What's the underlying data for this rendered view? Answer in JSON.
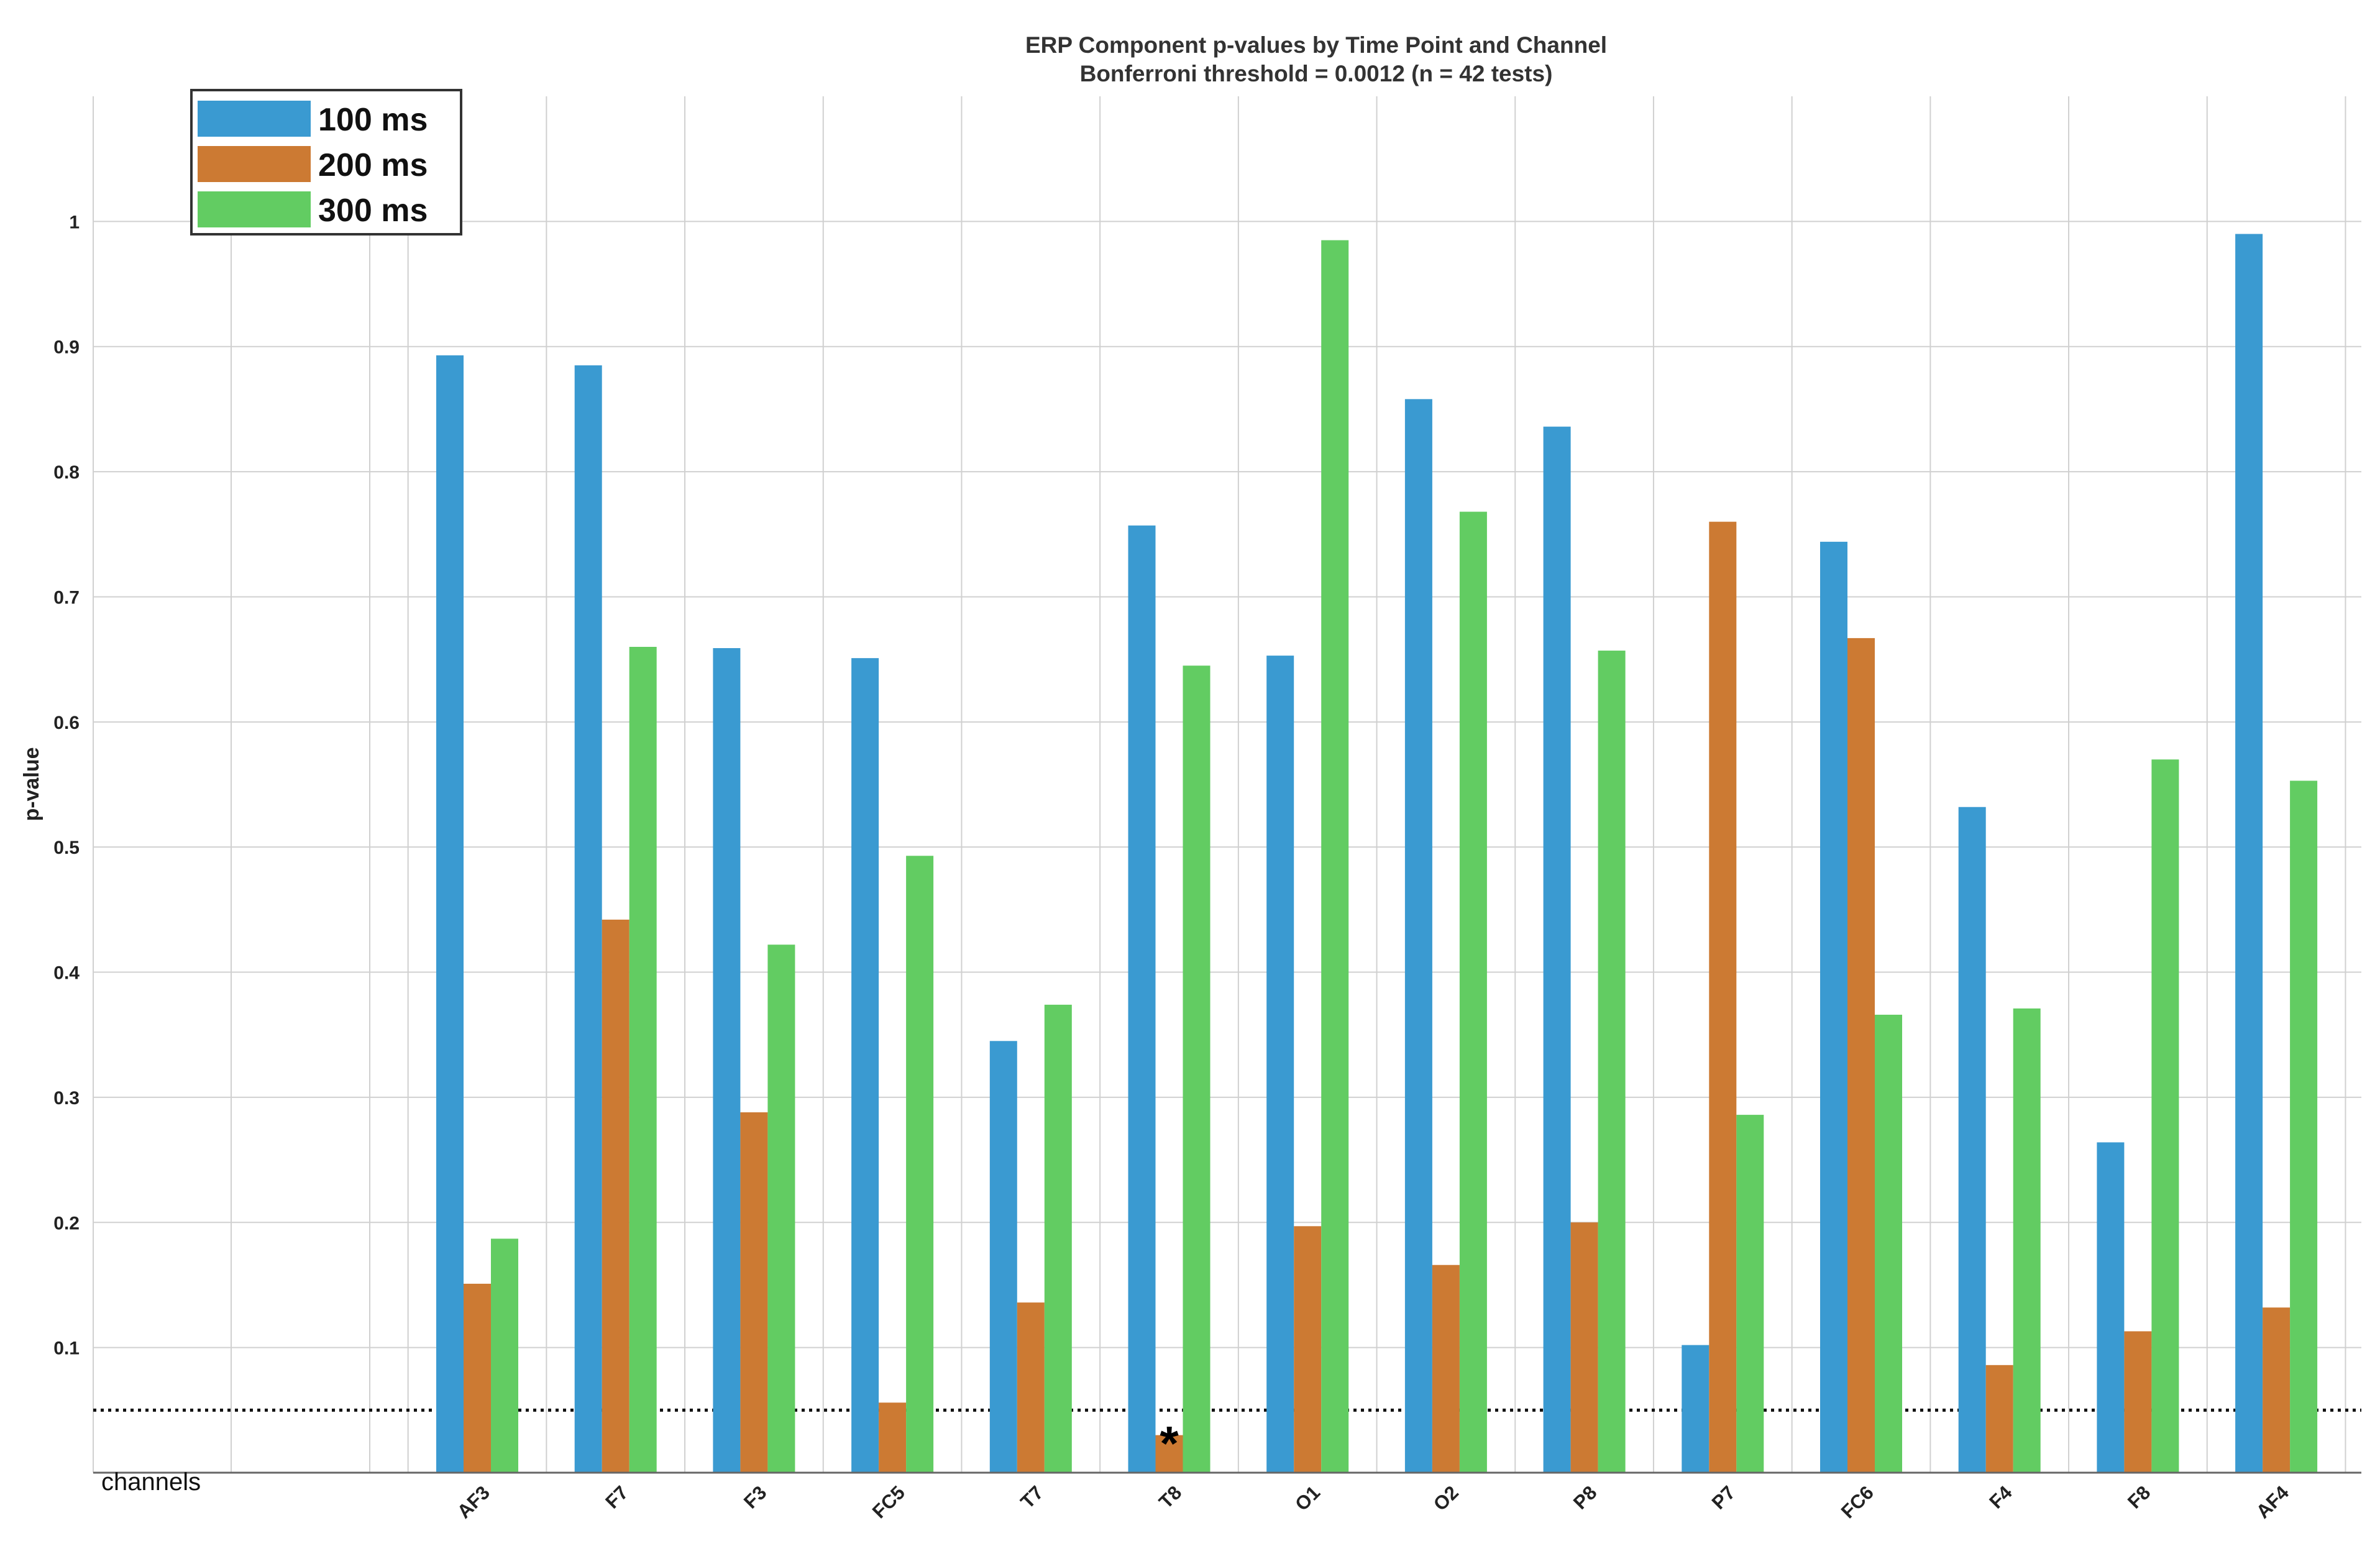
{
  "chart_data": {
    "type": "bar",
    "title": "ERP Component p-values by Time Point and Channel",
    "subtitle": "Bonferroni threshold = 0.0012 (n = 42 tests)",
    "xlabel": "channels",
    "ylabel": "p-value",
    "ylim": [
      0,
      1.1
    ],
    "yticks": [
      "0.1",
      "0.2",
      "0.3",
      "0.4",
      "0.5",
      "0.6",
      "0.7",
      "0.8",
      "0.9",
      "1"
    ],
    "grid": true,
    "legend_position": "top-left",
    "categories": [
      "AF3",
      "F7",
      "F3",
      "FC5",
      "T7",
      "T8",
      "O1",
      "O2",
      "P8",
      "P7",
      "FC6",
      "F4",
      "F8",
      "AF4"
    ],
    "series": [
      {
        "name": "100 ms",
        "color": "#3a9ad1",
        "values": [
          0.893,
          0.885,
          0.659,
          0.651,
          0.345,
          0.757,
          0.653,
          0.858,
          0.836,
          0.102,
          0.744,
          0.532,
          0.264,
          0.99
        ]
      },
      {
        "name": "200 ms",
        "color": "#cc7a33",
        "values": [
          0.151,
          0.442,
          0.288,
          0.056,
          0.136,
          0.03,
          0.197,
          0.166,
          0.2,
          0.76,
          0.667,
          0.086,
          0.113,
          0.132
        ]
      },
      {
        "name": "300 ms",
        "color": "#62cc62",
        "values": [
          0.187,
          0.66,
          0.422,
          0.493,
          0.374,
          0.645,
          0.985,
          0.768,
          0.657,
          0.286,
          0.366,
          0.371,
          0.57,
          0.553
        ]
      }
    ],
    "reference_line": {
      "value": 0.05,
      "style": "dotted"
    },
    "annotations": [
      {
        "text": "*",
        "category": "T8",
        "series": "200 ms"
      }
    ]
  }
}
